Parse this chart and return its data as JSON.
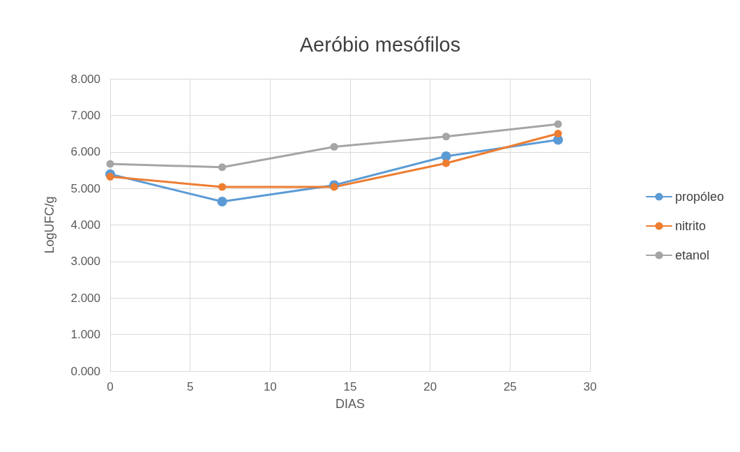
{
  "chart_data": {
    "type": "line",
    "title": "Aeróbio mesófilos",
    "xlabel": "DIAS",
    "ylabel": "LogUFC/g",
    "x": [
      0,
      7,
      14,
      21,
      28
    ],
    "series": [
      {
        "name": "propóleo",
        "color": "#5b9bd5",
        "values": [
          5.39,
          4.64,
          5.09,
          5.88,
          6.33
        ]
      },
      {
        "name": "nitrito",
        "color": "#ed7d31",
        "values": [
          5.32,
          5.04,
          5.04,
          5.69,
          6.5
        ]
      },
      {
        "name": "etanol",
        "color": "#a5a5a5",
        "values": [
          5.67,
          5.58,
          6.14,
          6.42,
          6.76
        ]
      }
    ],
    "xlim": [
      0,
      30
    ],
    "xticks": [
      0,
      5,
      10,
      15,
      20,
      25,
      30
    ],
    "ylim": [
      0,
      8
    ],
    "yticks": [
      {
        "value": 0,
        "label": "0.000"
      },
      {
        "value": 1,
        "label": "1.000"
      },
      {
        "value": 2,
        "label": "2.000"
      },
      {
        "value": 3,
        "label": "3.000"
      },
      {
        "value": 4,
        "label": "4.000"
      },
      {
        "value": 5,
        "label": "5.000"
      },
      {
        "value": 6,
        "label": "6.000"
      },
      {
        "value": 7,
        "label": "7.000"
      },
      {
        "value": 8,
        "label": "8.000"
      }
    ],
    "grid": true,
    "legend": "right",
    "marker": "circle",
    "line_style": "solid"
  }
}
